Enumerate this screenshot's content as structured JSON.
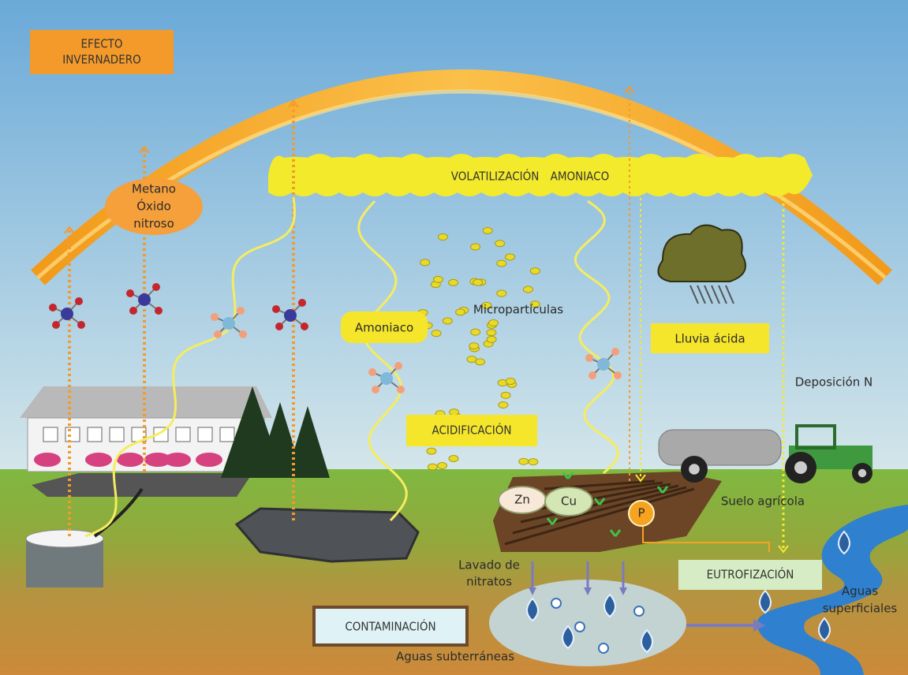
{
  "labels": {
    "greenhouse_effect": [
      "EFECTO",
      "INVERNADERO"
    ],
    "ammonia_volatilization": "VOLATILIZACIÓN AMONIACO",
    "methane_nitrous_oxide": [
      "Metano",
      "Óxido",
      "nitroso"
    ],
    "microparticles": "Micropartículas",
    "ammonia": "Amoniaco",
    "acid_rain": "Lluvia ácida",
    "n_deposition": "Deposición N",
    "acidification": "ACIDIFICACIÓN",
    "zinc": "Zn",
    "copper": "Cu",
    "phosphorus": "P",
    "agricultural_soil": "Suelo agrícola",
    "nitrate_leaching": [
      "Lavado de",
      "nitratos"
    ],
    "eutrophication": "EUTROFIZACIÓN",
    "surface_water": [
      "Aguas",
      "superficiales"
    ],
    "contamination": "CONTAMINACIÓN",
    "groundwater": "Aguas subterráneas"
  }
}
